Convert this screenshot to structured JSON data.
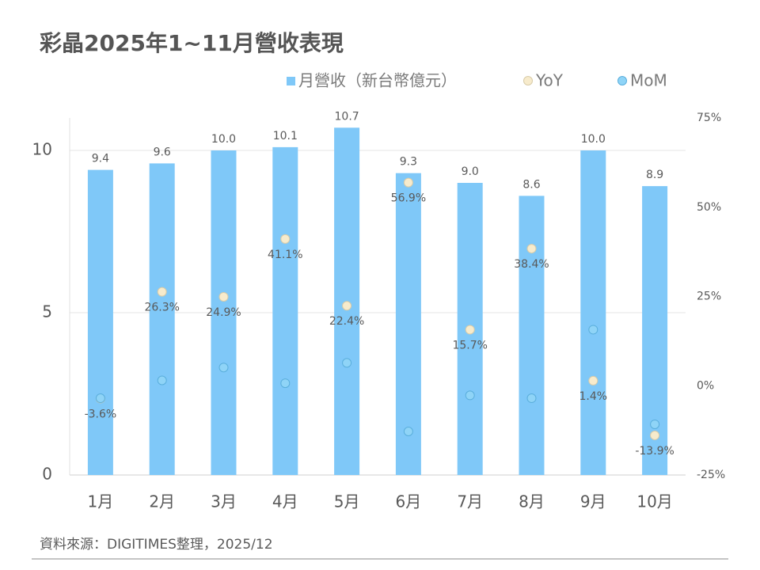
{
  "chart_data": {
    "type": "bar_dot_combo",
    "title": "彩晶2025年1~11月營收表現",
    "source": "資料來源：DIGITIMES整理，2025/12",
    "categories": [
      "1月",
      "2月",
      "3月",
      "4月",
      "5月",
      "6月",
      "7月",
      "8月",
      "9月",
      "10月"
    ],
    "series": [
      {
        "name": "月營收（新台幣億元）",
        "type": "bar",
        "color": "#7fc8f8",
        "values": [
          9.4,
          9.6,
          10.0,
          10.1,
          10.7,
          9.3,
          9.0,
          8.6,
          10.0,
          8.9
        ],
        "value_labels": [
          "9.4",
          "9.6",
          "10.0",
          "10.1",
          "10.7",
          "9.3",
          "9.0",
          "8.6",
          "10.0",
          "8.9"
        ]
      },
      {
        "name": "YoY",
        "type": "dot",
        "axis": "y2",
        "color": "#f7ebcc",
        "values": [
          -3.6,
          26.3,
          24.9,
          41.1,
          22.4,
          56.9,
          15.7,
          38.4,
          1.4,
          -13.9
        ],
        "value_labels": [
          "-3.6%",
          "26.3%",
          "24.9%",
          "41.1%",
          "22.4%",
          "56.9%",
          "15.7%",
          "38.4%",
          "1.4%",
          "-13.9%"
        ]
      },
      {
        "name": "MoM",
        "type": "dot",
        "axis": "y2",
        "color": "#8fd4f7",
        "values": [
          -3.5,
          1.5,
          5.1,
          0.7,
          6.4,
          -12.8,
          -2.7,
          -3.5,
          15.7,
          -10.8
        ]
      }
    ],
    "ylim": [
      0,
      11
    ],
    "yticks": [
      0,
      5,
      10
    ],
    "y2lim": [
      -25,
      75
    ],
    "y2ticks": [
      {
        "value": -25,
        "label": "-25%"
      },
      {
        "value": 0,
        "label": "0%"
      },
      {
        "value": 25,
        "label": "25%"
      },
      {
        "value": 50,
        "label": "50%"
      },
      {
        "value": 75,
        "label": "75%"
      }
    ],
    "grid": true
  }
}
